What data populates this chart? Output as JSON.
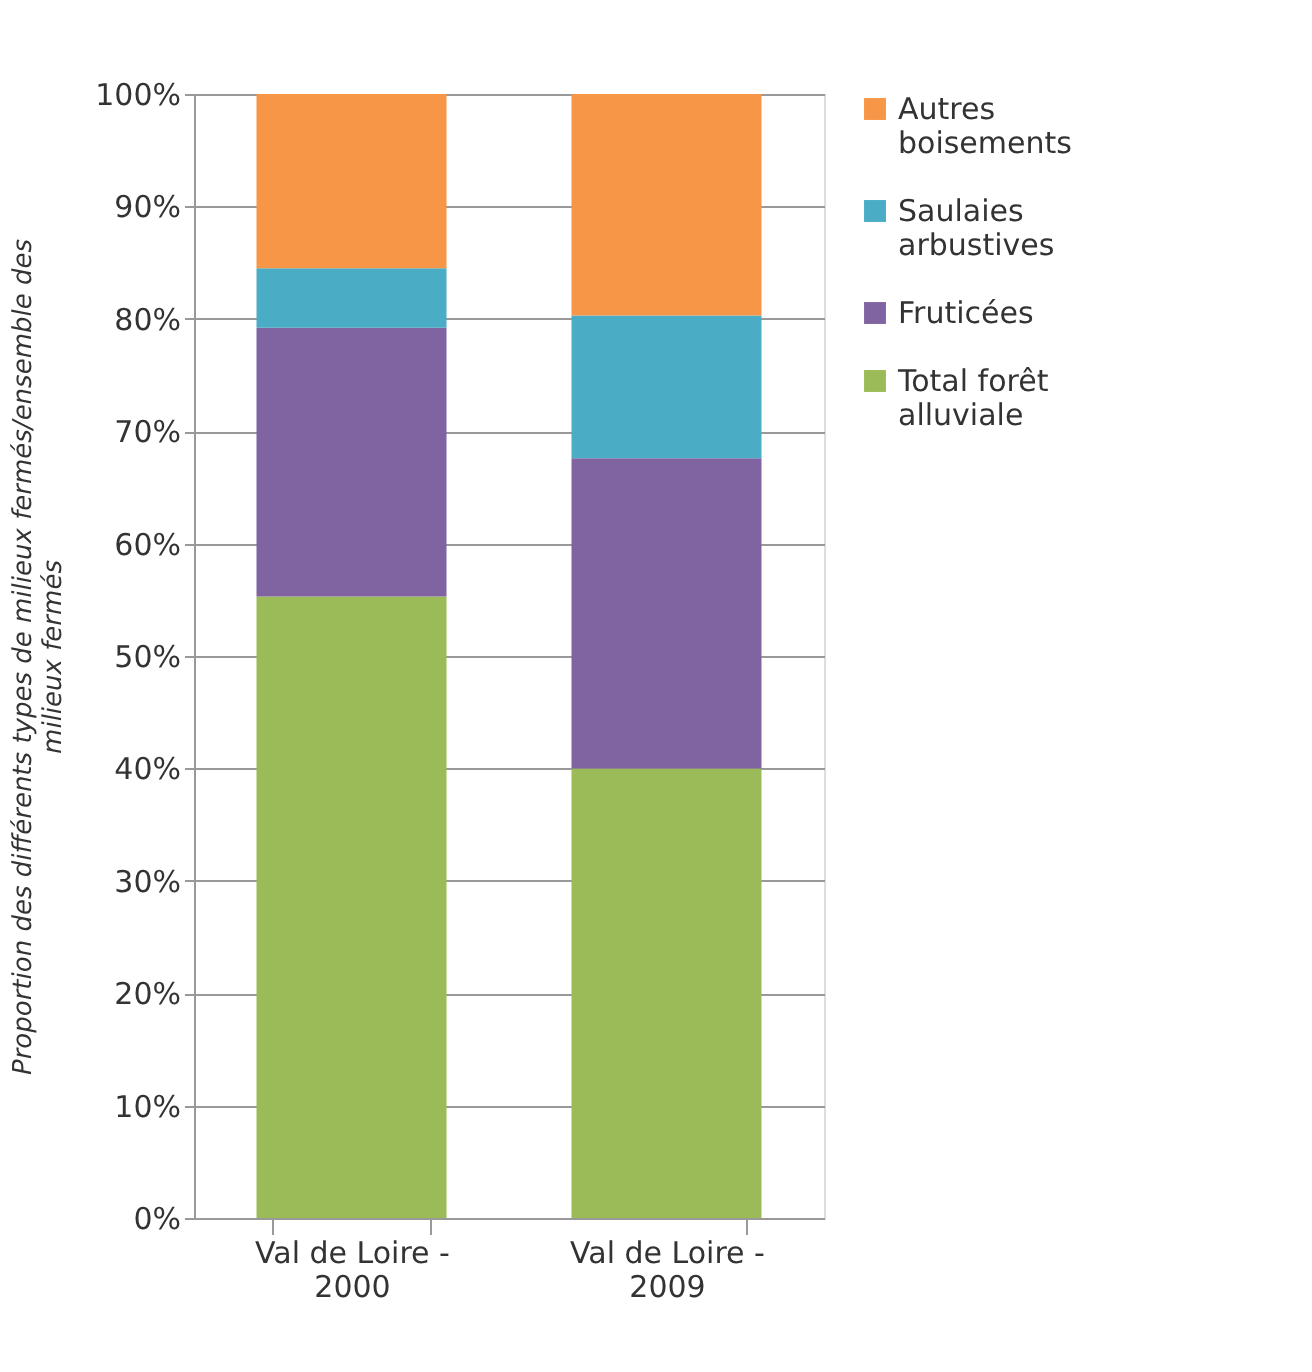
{
  "chart_data": {
    "type": "bar",
    "stacked": true,
    "categories": [
      "Val de Loire - 2000",
      "Val de Loire - 2009"
    ],
    "ylabel": "Proportion des différents types de milieux fermés/ensemble des milieux fermés",
    "series": [
      {
        "name": "Total forêt alluviale",
        "color": "#9bbb59",
        "values": [
          55.3,
          40.0
        ]
      },
      {
        "name": "Fruticées",
        "color": "#8064a2",
        "values": [
          23.9,
          27.6
        ]
      },
      {
        "name": "Saulaies arbustives",
        "color": "#4bacc6",
        "values": [
          5.3,
          12.7
        ]
      },
      {
        "name": "Autres boisements",
        "color": "#f79646",
        "values": [
          15.5,
          19.7
        ]
      }
    ],
    "ylim": [
      0,
      100
    ],
    "yticks": [
      {
        "value": 0,
        "label": "0%"
      },
      {
        "value": 10,
        "label": "10%"
      },
      {
        "value": 20,
        "label": "20%"
      },
      {
        "value": 30,
        "label": "30%"
      },
      {
        "value": 40,
        "label": "40%"
      },
      {
        "value": 50,
        "label": "50%"
      },
      {
        "value": 60,
        "label": "60%"
      },
      {
        "value": 70,
        "label": "70%"
      },
      {
        "value": 80,
        "label": "80%"
      },
      {
        "value": 90,
        "label": "90%"
      },
      {
        "value": 100,
        "label": "100%"
      }
    ],
    "grid": "y",
    "legend": "right"
  }
}
